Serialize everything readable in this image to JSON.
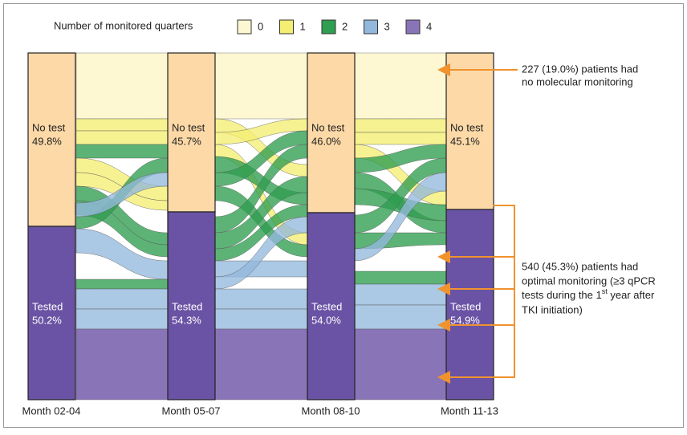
{
  "legend": {
    "title": "Number of monitored quarters",
    "items": [
      "0",
      "1",
      "2",
      "3",
      "4"
    ]
  },
  "columns": [
    {
      "label": "Month 02-04",
      "no_test": {
        "label": "No test",
        "value": "49.8%"
      },
      "tested": {
        "label": "Tested",
        "value": "50.2%"
      }
    },
    {
      "label": "Month 05-07",
      "no_test": {
        "label": "No test",
        "value": "45.7%"
      },
      "tested": {
        "label": "Tested",
        "value": "54.3%"
      }
    },
    {
      "label": "Month 08-10",
      "no_test": {
        "label": "No test",
        "value": "46.0%"
      },
      "tested": {
        "label": "Tested",
        "value": "54.0%"
      }
    },
    {
      "label": "Month 11-13",
      "no_test": {
        "label": "No test",
        "value": "45.1%"
      },
      "tested": {
        "label": "Tested",
        "value": "54.9%"
      }
    }
  ],
  "annotations": [
    {
      "lines": [
        "227 (19.0%) patients had",
        "no molecular monitoring"
      ]
    },
    {
      "lines": [
        "540 (45.3%) patients had",
        "optimal monitoring (≥3 qPCR",
        "tests during the 1",
        "st",
        " year after",
        "TKI initiation)"
      ]
    }
  ]
}
